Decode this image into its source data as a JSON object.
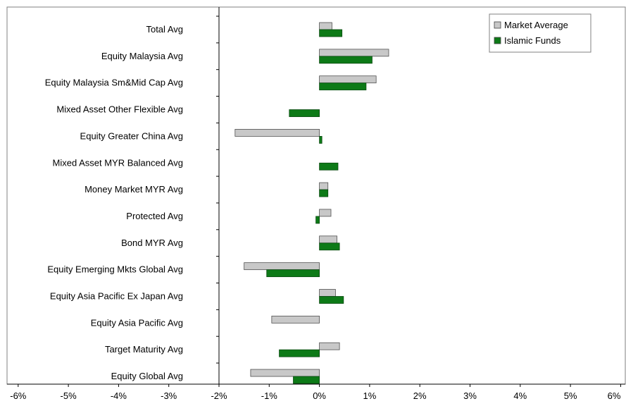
{
  "chart_data": {
    "type": "bar",
    "orientation": "horizontal",
    "title": "",
    "xlabel": "",
    "ylabel": "",
    "xlim": [
      -6,
      6
    ],
    "x_ticks": [
      -6,
      -5,
      -4,
      -3,
      -2,
      -1,
      0,
      1,
      2,
      3,
      4,
      5,
      6
    ],
    "x_tick_labels": [
      "-6%",
      "-5%",
      "-4%",
      "-3%",
      "-2%",
      "-1%",
      "0%",
      "1%",
      "2%",
      "3%",
      "4%",
      "5%",
      "6%"
    ],
    "grid": false,
    "legend_position": "top-right",
    "categories": [
      "Total Avg",
      "Equity Malaysia Avg",
      "Equity Malaysia Sm&Mid Cap Avg",
      "Mixed Asset Other Flexible Avg",
      "Equity Greater China Avg",
      "Mixed Asset MYR Balanced Avg",
      "Money Market MYR Avg",
      "Protected Avg",
      "Bond MYR Avg",
      "Equity Emerging Mkts Global Avg",
      "Equity Asia Pacific Ex Japan Avg",
      "Equity Asia Pacific Avg",
      "Target Maturity Avg",
      "Equity Global Avg"
    ],
    "series": [
      {
        "name": "Market Average",
        "color": "#c8c8c8",
        "values": [
          0.25,
          1.38,
          1.13,
          0.0,
          -1.68,
          0.0,
          0.17,
          0.23,
          0.35,
          -1.5,
          0.32,
          -0.95,
          0.4,
          -1.37
        ]
      },
      {
        "name": "Islamic Funds",
        "color": "#0d7a17",
        "values": [
          0.45,
          1.05,
          0.93,
          -0.6,
          0.05,
          0.37,
          0.17,
          -0.07,
          0.4,
          -1.05,
          0.48,
          0.0,
          -0.8,
          -0.52
        ]
      }
    ]
  }
}
